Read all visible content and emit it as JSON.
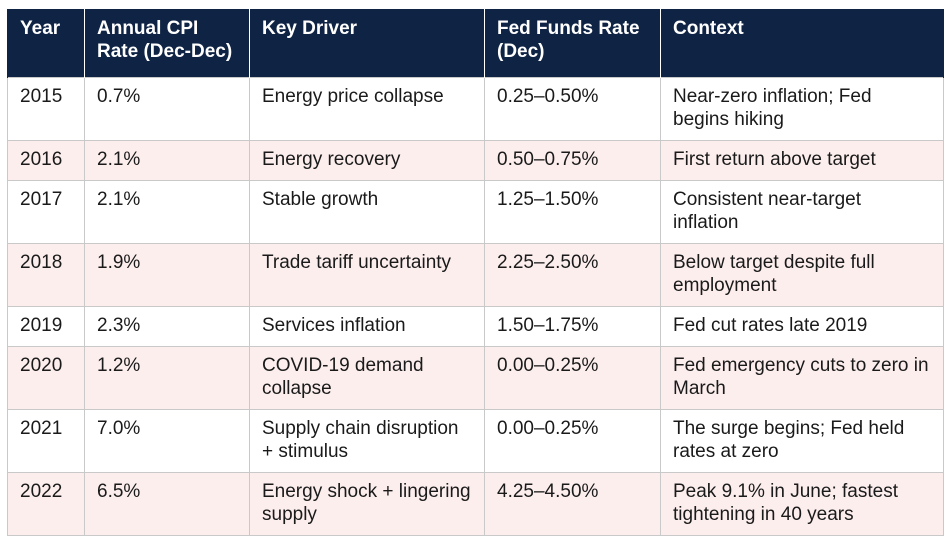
{
  "table": {
    "headers": [
      "Year",
      "Annual CPI Rate (Dec-Dec)",
      "Key Driver",
      "Fed Funds Rate (Dec)",
      "Context"
    ],
    "rows": [
      [
        "2015",
        "0.7%",
        "Energy price collapse",
        "0.25–0.50%",
        "Near-zero inflation; Fed begins hiking"
      ],
      [
        "2016",
        "2.1%",
        "Energy recovery",
        "0.50–0.75%",
        "First return above target"
      ],
      [
        "2017",
        "2.1%",
        "Stable growth",
        "1.25–1.50%",
        "Consistent near-target inflation"
      ],
      [
        "2018",
        "1.9%",
        "Trade tariff uncertainty",
        "2.25–2.50%",
        "Below target despite full employment"
      ],
      [
        "2019",
        "2.3%",
        "Services inflation",
        "1.50–1.75%",
        "Fed cut rates late 2019"
      ],
      [
        "2020",
        "1.2%",
        "COVID-19 demand collapse",
        "0.00–0.25%",
        "Fed emergency cuts to zero in March"
      ],
      [
        "2021",
        "7.0%",
        "Supply chain disruption + stimulus",
        "0.00–0.25%",
        "The surge begins; Fed held rates at zero"
      ],
      [
        "2022",
        "6.5%",
        "Energy shock + lingering supply",
        "4.25–4.50%",
        "Peak 9.1% in June; fastest tightening in 40 years"
      ]
    ],
    "colors": {
      "header_bg": "#0f2345",
      "header_text": "#ffffff",
      "stripe_bg": "#fdeeee",
      "border": "#c9c9c9"
    }
  }
}
